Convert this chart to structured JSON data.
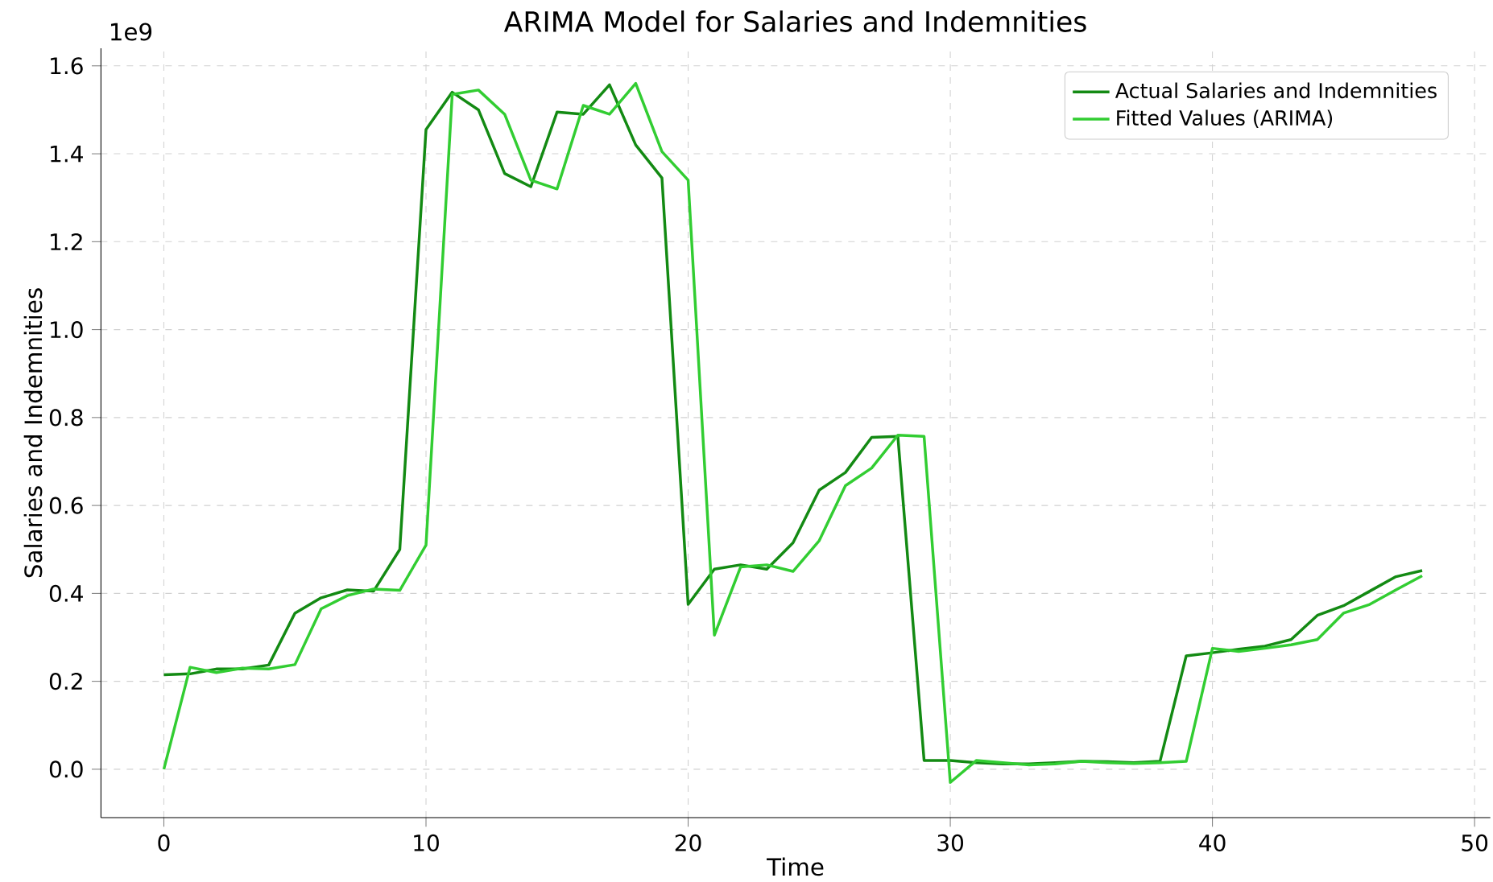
{
  "chart_data": {
    "type": "line",
    "title": "ARIMA Model for Salaries and Indemnities",
    "xlabel": "Time",
    "ylabel": "Salaries and Indemnities",
    "annotations": [
      "1e9"
    ],
    "x": [
      0,
      1,
      2,
      3,
      4,
      5,
      6,
      7,
      8,
      9,
      10,
      11,
      12,
      13,
      14,
      15,
      16,
      17,
      18,
      19,
      20,
      21,
      22,
      23,
      24,
      25,
      26,
      27,
      28,
      29,
      30,
      31,
      32,
      33,
      34,
      35,
      36,
      37,
      38,
      39,
      40,
      41,
      42,
      43,
      44,
      45,
      46,
      47,
      48
    ],
    "series": [
      {
        "name": "Actual Salaries and Indemnities",
        "color": "#138a13",
        "values": [
          0.215,
          0.217,
          0.228,
          0.228,
          0.237,
          0.355,
          0.39,
          0.408,
          0.405,
          0.5,
          1.455,
          1.54,
          1.5,
          1.355,
          1.325,
          1.495,
          1.49,
          1.557,
          1.42,
          1.345,
          0.375,
          0.455,
          0.465,
          0.455,
          0.515,
          0.635,
          0.675,
          0.755,
          0.757,
          0.02,
          0.02,
          0.015,
          0.012,
          0.012,
          0.015,
          0.018,
          0.017,
          0.015,
          0.018,
          0.258,
          0.265,
          0.273,
          0.28,
          0.295,
          0.35,
          0.372,
          0.405,
          0.438,
          0.452
        ]
      },
      {
        "name": "Fitted Values (ARIMA)",
        "color": "#32cd32",
        "values": [
          0.0,
          0.232,
          0.22,
          0.23,
          0.228,
          0.238,
          0.365,
          0.395,
          0.41,
          0.407,
          0.51,
          1.535,
          1.545,
          1.49,
          1.34,
          1.32,
          1.51,
          1.49,
          1.56,
          1.405,
          1.34,
          0.305,
          0.46,
          0.465,
          0.45,
          0.52,
          0.645,
          0.685,
          0.76,
          0.757,
          -0.03,
          0.02,
          0.015,
          0.01,
          0.012,
          0.018,
          0.015,
          0.013,
          0.015,
          0.018,
          0.275,
          0.268,
          0.275,
          0.283,
          0.295,
          0.355,
          0.375,
          0.408,
          0.44
        ]
      }
    ],
    "xlim": [
      -2.4,
      50.6
    ],
    "ylim": [
      -0.11,
      1.64
    ],
    "xticks": [
      0,
      10,
      20,
      30,
      40,
      50
    ],
    "yticks": [
      {
        "value": 0,
        "label": "0.0"
      },
      {
        "value": 0.2,
        "label": "0.2"
      },
      {
        "value": 0.4,
        "label": "0.4"
      },
      {
        "value": 0.6,
        "label": "0.6"
      },
      {
        "value": 0.8,
        "label": "0.8"
      },
      {
        "value": 1.0,
        "label": "1.0"
      },
      {
        "value": 1.2,
        "label": "1.2"
      },
      {
        "value": 1.4,
        "label": "1.4"
      },
      {
        "value": 1.6,
        "label": "1.6"
      }
    ],
    "grid": true,
    "legend": "top right",
    "marker": "none",
    "line_style": "solid"
  }
}
